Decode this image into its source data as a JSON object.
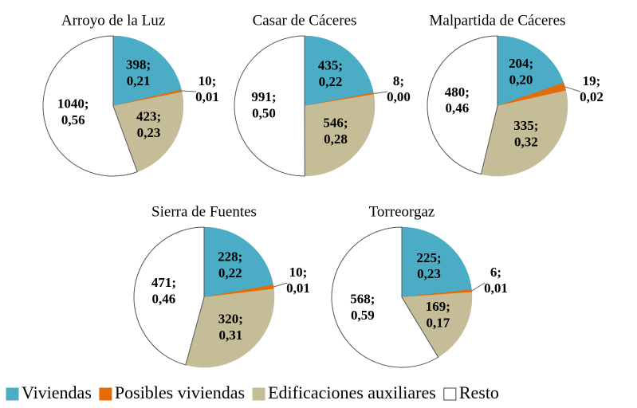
{
  "chart_data": [
    {
      "type": "pie",
      "title": "Arroyo de la Luz",
      "values": [
        398,
        10,
        423,
        1040
      ],
      "value_labels": [
        "398; 0,21",
        "10; 0,01",
        "423; 0,23",
        "1040; 0,56"
      ]
    },
    {
      "type": "pie",
      "title": "Casar de Cáceres",
      "values": [
        435,
        8,
        546,
        991
      ],
      "value_labels": [
        "435; 0,22",
        "8; 0,00",
        "546; 0,28",
        "991; 0,50"
      ]
    },
    {
      "type": "pie",
      "title": "Malpartida de Cáceres",
      "values": [
        204,
        19,
        335,
        480
      ],
      "value_labels": [
        "204; 0,20",
        "19; 0,02",
        "335; 0,32",
        "480; 0,46"
      ]
    },
    {
      "type": "pie",
      "title": "Sierra de Fuentes",
      "values": [
        228,
        10,
        320,
        471
      ],
      "value_labels": [
        "228; 0,22",
        "10; 0,01",
        "320; 0,31",
        "471; 0,46"
      ]
    },
    {
      "type": "pie",
      "title": "Torreorgaz",
      "values": [
        225,
        6,
        169,
        568
      ],
      "value_labels": [
        "225; 0,23",
        "6; 0,01",
        "169; 0,17",
        "568; 0,59"
      ]
    }
  ],
  "legend": {
    "categories": [
      "Viviendas",
      "Posibles viviendas",
      "Edificaciones auxiliares",
      "Resto"
    ],
    "colors": [
      "#4bacc6",
      "#e36c09",
      "#c4bd97",
      "#ffffff"
    ]
  }
}
